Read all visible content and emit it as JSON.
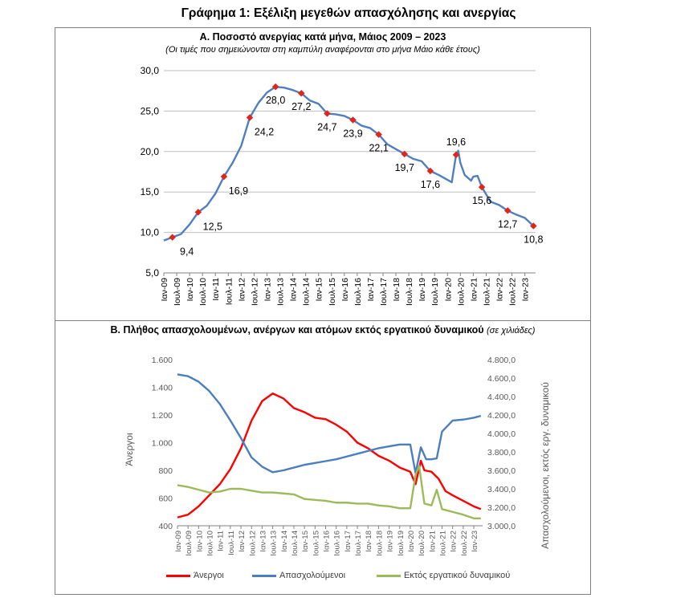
{
  "page": {
    "title": "Γράφημα 1: Εξέλιξη μεγεθών απασχόλησης και ανεργίας"
  },
  "colors": {
    "unemployment_rate": "#4f7fc0",
    "marker": "#e0261b",
    "unemployed": "#ff0000",
    "employed": "#4a7ebf",
    "inactive": "#9bbb59",
    "grid": "#bfbfbf",
    "axis_text": "#595959"
  },
  "chart_data": [
    {
      "type": "line",
      "title": "Α. Ποσοστό ανεργίας κατά μήνα, Μάιος 2009 – 2023",
      "subtitle": "(Οι τιμές που σημειώνονται στη καμπύλη αναφέρονται στο μήνα Μάιο κάθε έτους)",
      "xlabel": "",
      "ylabel": "",
      "ylim": [
        5,
        30
      ],
      "yticks": [
        "5,0",
        "10,0",
        "15,0",
        "20,0",
        "25,0",
        "30,0"
      ],
      "ytick_values": [
        5,
        10,
        15,
        20,
        25,
        30
      ],
      "grid": true,
      "legend": "none",
      "xtick_labels": [
        "Ιαν-09",
        "Ιουλ-09",
        "Ιαν-10",
        "Ιουλ-10",
        "Ιαν-11",
        "Ιουλ-11",
        "Ιαν-12",
        "Ιουλ-12",
        "Ιαν-13",
        "Ιουλ-13",
        "Ιαν-14",
        "Ιουλ-14",
        "Ιαν-15",
        "Ιουλ-15",
        "Ιαν-16",
        "Ιουλ-16",
        "Ιαν-17",
        "Ιουλ-17",
        "Ιαν-18",
        "Ιουλ-18",
        "Ιαν-19",
        "Ιουλ-19",
        "Ιαν-20",
        "Ιουλ-20",
        "Ιαν-21",
        "Ιουλ-21",
        "Ιαν-22",
        "Ιουλ-22",
        "Ιαν-23"
      ],
      "x_start": "2009-01",
      "series": [
        {
          "points": [
            [
              "2009-01",
              9.0
            ],
            [
              "2009-05",
              9.4
            ],
            [
              "2009-09",
              9.8
            ],
            [
              "2010-01",
              11.0
            ],
            [
              "2010-05",
              12.5
            ],
            [
              "2010-09",
              13.3
            ],
            [
              "2011-01",
              14.8
            ],
            [
              "2011-05",
              16.9
            ],
            [
              "2011-09",
              18.6
            ],
            [
              "2012-01",
              20.7
            ],
            [
              "2012-05",
              24.2
            ],
            [
              "2012-09",
              26.0
            ],
            [
              "2013-01",
              27.3
            ],
            [
              "2013-05",
              28.0
            ],
            [
              "2013-09",
              27.9
            ],
            [
              "2014-01",
              27.6
            ],
            [
              "2014-05",
              27.2
            ],
            [
              "2014-09",
              26.3
            ],
            [
              "2015-01",
              25.9
            ],
            [
              "2015-05",
              24.7
            ],
            [
              "2015-09",
              24.6
            ],
            [
              "2016-01",
              24.4
            ],
            [
              "2016-05",
              23.9
            ],
            [
              "2016-09",
              23.2
            ],
            [
              "2017-01",
              22.9
            ],
            [
              "2017-05",
              22.1
            ],
            [
              "2017-09",
              20.9
            ],
            [
              "2018-01",
              20.3
            ],
            [
              "2018-05",
              19.7
            ],
            [
              "2018-09",
              19.1
            ],
            [
              "2019-01",
              18.8
            ],
            [
              "2019-05",
              17.6
            ],
            [
              "2019-09",
              17.1
            ],
            [
              "2020-01",
              16.5
            ],
            [
              "2020-03",
              16.2
            ],
            [
              "2020-05",
              19.6
            ],
            [
              "2020-06",
              20.1
            ],
            [
              "2020-07",
              18.6
            ],
            [
              "2020-09",
              17.1
            ],
            [
              "2020-12",
              16.4
            ],
            [
              "2021-01",
              16.9
            ],
            [
              "2021-03",
              17.0
            ],
            [
              "2021-05",
              15.6
            ],
            [
              "2021-09",
              13.8
            ],
            [
              "2022-01",
              13.4
            ],
            [
              "2022-05",
              12.7
            ],
            [
              "2022-09",
              12.2
            ],
            [
              "2023-01",
              11.8
            ],
            [
              "2023-05",
              10.8
            ]
          ]
        }
      ],
      "annotations": [
        {
          "x": "2009-05",
          "y": 9.4,
          "label": "9,4",
          "pos": "below-right"
        },
        {
          "x": "2010-05",
          "y": 12.5,
          "label": "12,5",
          "pos": "below-right"
        },
        {
          "x": "2011-05",
          "y": 16.9,
          "label": "16,9",
          "pos": "below-right"
        },
        {
          "x": "2012-05",
          "y": 24.2,
          "label": "24,2",
          "pos": "below-right"
        },
        {
          "x": "2013-05",
          "y": 28.0,
          "label": "28,0",
          "pos": "below"
        },
        {
          "x": "2014-05",
          "y": 27.2,
          "label": "27,2",
          "pos": "below"
        },
        {
          "x": "2015-05",
          "y": 24.7,
          "label": "24,7",
          "pos": "below"
        },
        {
          "x": "2016-05",
          "y": 23.9,
          "label": "23,9",
          "pos": "below"
        },
        {
          "x": "2017-05",
          "y": 22.1,
          "label": "22,1",
          "pos": "below"
        },
        {
          "x": "2018-05",
          "y": 19.7,
          "label": "19,7",
          "pos": "below"
        },
        {
          "x": "2019-05",
          "y": 17.6,
          "label": "17,6",
          "pos": "below"
        },
        {
          "x": "2020-05",
          "y": 19.6,
          "label": "19,6",
          "pos": "above"
        },
        {
          "x": "2021-05",
          "y": 15.6,
          "label": "15,6",
          "pos": "below"
        },
        {
          "x": "2022-05",
          "y": 12.7,
          "label": "12,7",
          "pos": "below"
        },
        {
          "x": "2023-05",
          "y": 10.8,
          "label": "10,8",
          "pos": "below"
        }
      ]
    },
    {
      "type": "line",
      "title": "Β. Πλήθος απασχολουμένων, ανέργων και ατόμων εκτός εργατικού δυναμικού",
      "subtitle": "(σε χιλιάδες)",
      "xlabel": "",
      "ylabel": "Άνεργοι",
      "ylabel_right": "Απασχολούμενοι, εκτός εργ. δυναμικού",
      "ylim": [
        400,
        1600
      ],
      "ylim_right": [
        3000,
        4800
      ],
      "yticks": [
        "400",
        "600",
        "800",
        "1.000",
        "1.200",
        "1.400",
        "1.600"
      ],
      "ytick_values": [
        400,
        600,
        800,
        1000,
        1200,
        1400,
        1600
      ],
      "yticks_right": [
        "3.000,0",
        "3.200,0",
        "3.400,0",
        "3.600,0",
        "3.800,0",
        "4.000,0",
        "4.200,0",
        "4.400,0",
        "4.600,0",
        "4.800,0"
      ],
      "ytick_values_right": [
        3000,
        3200,
        3400,
        3600,
        3800,
        4000,
        4200,
        4400,
        4600,
        4800
      ],
      "grid": false,
      "legend": "bottom",
      "xtick_labels": [
        "Ιαν-09",
        "Ιουλ-09",
        "Ιαν-10",
        "Ιουλ-10",
        "Ιαν-11",
        "Ιουλ-11",
        "Ιαν-12",
        "Ιουλ-12",
        "Ιαν-13",
        "Ιουλ-13",
        "Ιαν-14",
        "Ιουλ-14",
        "Ιαν-15",
        "Ιουλ-15",
        "Ιαν-16",
        "Ιουλ-16",
        "Ιαν-17",
        "Ιουλ-17",
        "Ιαν-18",
        "Ιουλ-18",
        "Ιαν-19",
        "Ιουλ-19",
        "Ιαν-20",
        "Ιουλ-20",
        "Ιαν-21",
        "Ιουλ-21",
        "Ιαν-22",
        "Ιουλ-22",
        "Ιαν-23"
      ],
      "x_start": "2009-01",
      "series": [
        {
          "name": "Άνεργοι",
          "axis": "left",
          "points": [
            [
              "2009-01",
              460
            ],
            [
              "2009-07",
              480
            ],
            [
              "2010-01",
              540
            ],
            [
              "2010-07",
              620
            ],
            [
              "2011-01",
              700
            ],
            [
              "2011-07",
              810
            ],
            [
              "2012-01",
              960
            ],
            [
              "2012-07",
              1160
            ],
            [
              "2013-01",
              1300
            ],
            [
              "2013-07",
              1355
            ],
            [
              "2014-01",
              1320
            ],
            [
              "2014-07",
              1250
            ],
            [
              "2015-01",
              1220
            ],
            [
              "2015-07",
              1180
            ],
            [
              "2016-01",
              1170
            ],
            [
              "2016-07",
              1130
            ],
            [
              "2017-01",
              1080
            ],
            [
              "2017-07",
              1000
            ],
            [
              "2018-01",
              960
            ],
            [
              "2018-07",
              905
            ],
            [
              "2019-01",
              870
            ],
            [
              "2019-07",
              820
            ],
            [
              "2020-01",
              790
            ],
            [
              "2020-04",
              700
            ],
            [
              "2020-07",
              870
            ],
            [
              "2020-09",
              800
            ],
            [
              "2021-01",
              790
            ],
            [
              "2021-05",
              740
            ],
            [
              "2021-09",
              650
            ],
            [
              "2022-01",
              620
            ],
            [
              "2022-07",
              580
            ],
            [
              "2023-01",
              540
            ],
            [
              "2023-05",
              520
            ]
          ]
        },
        {
          "name": "Απασχολούμενοι",
          "axis": "right",
          "points": [
            [
              "2009-01",
              4640
            ],
            [
              "2009-07",
              4620
            ],
            [
              "2010-01",
              4560
            ],
            [
              "2010-07",
              4460
            ],
            [
              "2011-01",
              4320
            ],
            [
              "2011-07",
              4140
            ],
            [
              "2012-01",
              3950
            ],
            [
              "2012-07",
              3740
            ],
            [
              "2013-01",
              3640
            ],
            [
              "2013-07",
              3580
            ],
            [
              "2014-01",
              3600
            ],
            [
              "2014-07",
              3630
            ],
            [
              "2015-01",
              3660
            ],
            [
              "2015-07",
              3680
            ],
            [
              "2016-01",
              3700
            ],
            [
              "2016-07",
              3720
            ],
            [
              "2017-01",
              3750
            ],
            [
              "2017-07",
              3780
            ],
            [
              "2018-01",
              3810
            ],
            [
              "2018-07",
              3840
            ],
            [
              "2019-01",
              3860
            ],
            [
              "2019-07",
              3880
            ],
            [
              "2020-01",
              3880
            ],
            [
              "2020-04",
              3570
            ],
            [
              "2020-07",
              3850
            ],
            [
              "2020-10",
              3720
            ],
            [
              "2021-01",
              3720
            ],
            [
              "2021-04",
              3730
            ],
            [
              "2021-07",
              4020
            ],
            [
              "2022-01",
              4140
            ],
            [
              "2022-07",
              4150
            ],
            [
              "2023-01",
              4170
            ],
            [
              "2023-05",
              4190
            ]
          ]
        },
        {
          "name": "Εκτός εργατικού δυναμικού",
          "axis": "right",
          "points": [
            [
              "2009-01",
              3440
            ],
            [
              "2009-07",
              3420
            ],
            [
              "2010-01",
              3390
            ],
            [
              "2010-07",
              3360
            ],
            [
              "2011-01",
              3370
            ],
            [
              "2011-07",
              3400
            ],
            [
              "2012-01",
              3400
            ],
            [
              "2012-07",
              3380
            ],
            [
              "2013-01",
              3360
            ],
            [
              "2013-07",
              3360
            ],
            [
              "2014-01",
              3350
            ],
            [
              "2014-07",
              3340
            ],
            [
              "2015-01",
              3290
            ],
            [
              "2015-07",
              3280
            ],
            [
              "2016-01",
              3270
            ],
            [
              "2016-07",
              3250
            ],
            [
              "2017-01",
              3250
            ],
            [
              "2017-07",
              3240
            ],
            [
              "2018-01",
              3240
            ],
            [
              "2018-07",
              3220
            ],
            [
              "2019-01",
              3210
            ],
            [
              "2019-07",
              3190
            ],
            [
              "2020-01",
              3190
            ],
            [
              "2020-04",
              3550
            ],
            [
              "2020-06",
              3650
            ],
            [
              "2020-09",
              3240
            ],
            [
              "2021-01",
              3220
            ],
            [
              "2021-04",
              3390
            ],
            [
              "2021-07",
              3180
            ],
            [
              "2022-01",
              3150
            ],
            [
              "2022-07",
              3120
            ],
            [
              "2023-01",
              3080
            ],
            [
              "2023-05",
              3080
            ]
          ]
        }
      ]
    }
  ]
}
